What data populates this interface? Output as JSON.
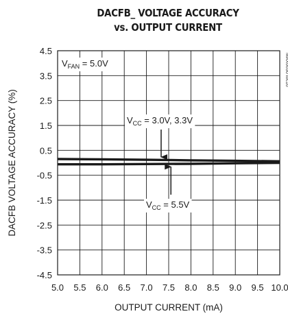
{
  "chart_data": {
    "type": "line",
    "title_line1": "DACFB_ VOLTAGE ACCURACY",
    "title_line2": "vs. OUTPUT CURRENT",
    "xlabel": "OUTPUT CURRENT (mA)",
    "ylabel": "DACFB VOLTAGE ACCURACY (%)",
    "xlim": [
      5.0,
      10.0
    ],
    "ylim": [
      -4.5,
      4.5
    ],
    "x_ticks": [
      "5.0",
      "5.5",
      "6.0",
      "6.5",
      "7.0",
      "7.5",
      "8.0",
      "8.5",
      "9.0",
      "9.5",
      "10.0"
    ],
    "y_ticks": [
      "4.5",
      "3.5",
      "2.5",
      "1.5",
      "0.5",
      "-0.5",
      "-1.5",
      "-2.5",
      "-3.5",
      "-4.5"
    ],
    "grid": true,
    "condition": {
      "prefix": "V",
      "sub": "FAN",
      "suffix": " = 5.0V"
    },
    "plot_id": "MAX6630 toc16",
    "series": [
      {
        "label_prefix": "V",
        "label_sub": "CC",
        "label_suffix": " = 3.0V, 3.3V",
        "x": [
          5.0,
          6.0,
          7.0,
          8.0,
          9.0,
          10.0
        ],
        "y": [
          0.15,
          0.14,
          0.12,
          0.1,
          0.08,
          0.06
        ]
      },
      {
        "label_prefix": "V",
        "label_sub": "CC",
        "label_suffix": " = 5.5V",
        "x": [
          5.0,
          6.0,
          7.0,
          8.0,
          9.0,
          10.0
        ],
        "y": [
          -0.06,
          -0.06,
          -0.05,
          -0.04,
          -0.02,
          0.0
        ]
      }
    ]
  }
}
